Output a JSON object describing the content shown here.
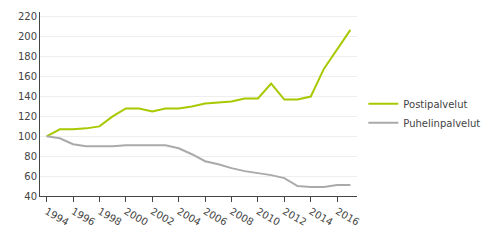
{
  "chart_data": {
    "type": "line",
    "x": [
      1994,
      1995,
      1996,
      1997,
      1998,
      1999,
      2000,
      2001,
      2002,
      2003,
      2004,
      2005,
      2006,
      2007,
      2008,
      2009,
      2010,
      2011,
      2012,
      2013,
      2014,
      2015,
      2016,
      2017
    ],
    "series": [
      {
        "name": "Postipalvelut",
        "color": "#aac800",
        "values": [
          100,
          107,
          107,
          108,
          110,
          120,
          128,
          128,
          125,
          128,
          128,
          130,
          133,
          134,
          135,
          138,
          138,
          153,
          137,
          137,
          140,
          168,
          187,
          207
        ]
      },
      {
        "name": "Puhelinpalvelut",
        "color": "#aaaaaa",
        "values": [
          100,
          98,
          92,
          90,
          90,
          90,
          91,
          91,
          91,
          91,
          88,
          82,
          75,
          72,
          68,
          65,
          63,
          61,
          58,
          50,
          49,
          49,
          51,
          51
        ]
      }
    ],
    "xlim": [
      1993.5,
      2017.5
    ],
    "xticks": [
      1994,
      1996,
      1998,
      2000,
      2002,
      2004,
      2006,
      2008,
      2010,
      2012,
      2014,
      2016
    ],
    "ylim": [
      40,
      225
    ],
    "yticks": [
      40,
      60,
      80,
      100,
      120,
      140,
      160,
      180,
      200,
      220
    ],
    "grid": true,
    "legend": "right"
  }
}
